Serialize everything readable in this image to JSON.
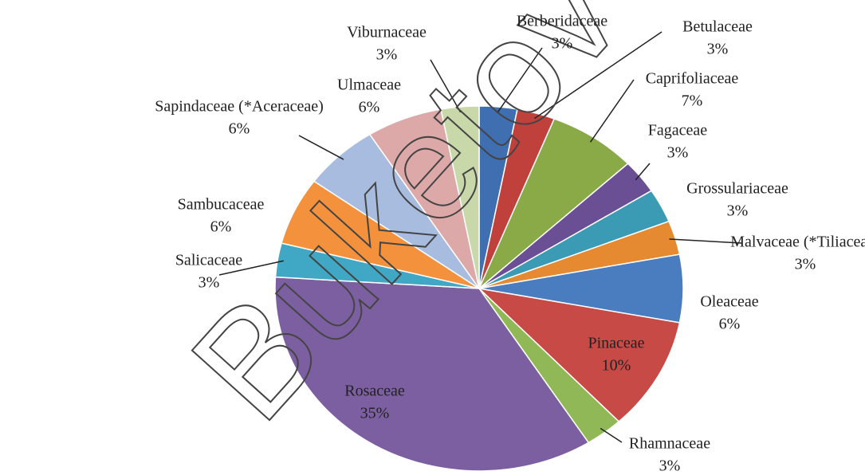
{
  "chart_data": {
    "type": "pie",
    "watermark": "Buketov",
    "categories": [
      "Berberidaceae",
      "Betulaceae",
      "Caprifoliaceae",
      "Fagaceae",
      "Grossulariaceae",
      "Malvaceae (*Tiliaceae)",
      "Oleaceae",
      "Pinaceae",
      "Rhamnaceae",
      "Rosaceae",
      "Salicaceae",
      "Sambucaceae",
      "Sapindaceae (*Aceraceae)",
      "Ulmaceae",
      "Viburnaceae"
    ],
    "values": [
      3,
      3,
      7,
      3,
      3,
      3,
      6,
      10,
      3,
      35,
      3,
      6,
      6,
      6,
      3
    ],
    "value_labels": [
      "3%",
      "3%",
      "7%",
      "3%",
      "3%",
      "3%",
      "6%",
      "10%",
      "3%",
      "35%",
      "3%",
      "6%",
      "6%",
      "6%",
      "3%"
    ],
    "colors": [
      "#3f6fb0",
      "#c0403c",
      "#8aaa48",
      "#6a4f94",
      "#3c9bb4",
      "#e58a30",
      "#4a7cc0",
      "#c84a46",
      "#90b856",
      "#7c5fa0",
      "#40a8c4",
      "#f4913c",
      "#a8bce0",
      "#dca8a8",
      "#c8d8a8"
    ]
  }
}
